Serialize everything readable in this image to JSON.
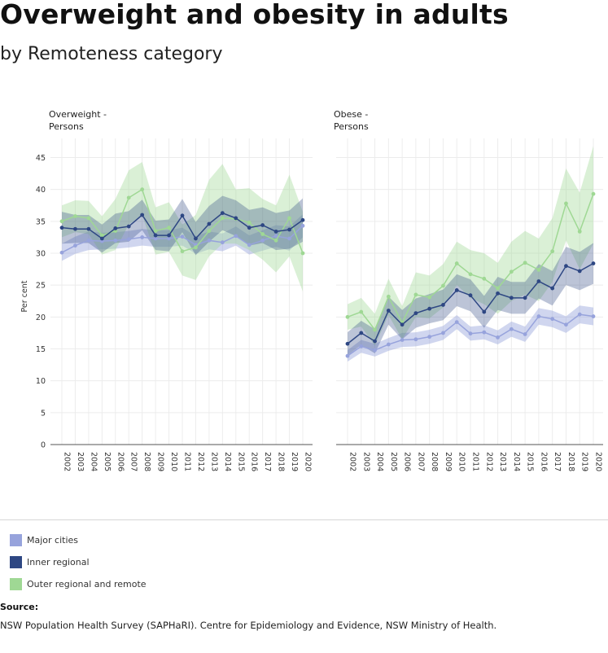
{
  "title": "Overweight and obesity in adults",
  "subtitle": "by Remoteness category",
  "colors": {
    "major_cities": "#97a3dc",
    "inner_regional": "#2e4783",
    "outer_regional_and_remote": "#9fd894",
    "grid": "#ececec",
    "axis": "#555555"
  },
  "legend": {
    "items": [
      {
        "label": "Major cities",
        "color": "#97a3dc"
      },
      {
        "label": "Inner regional",
        "color": "#2e4783"
      },
      {
        "label": "Outer regional and remote",
        "color": "#9fd894"
      }
    ]
  },
  "source": {
    "heading": "Source:",
    "text": "NSW Population Health Survey (SAPHaRI). Centre for Epidemiology and Evidence, NSW Ministry of Health."
  },
  "chart_data": [
    {
      "type": "line",
      "title_lines": [
        "Overweight -",
        "Persons"
      ],
      "ylabel": "Per cent",
      "ylim": [
        0,
        48
      ],
      "yticks": [
        0,
        5,
        10,
        15,
        20,
        25,
        30,
        35,
        40,
        45
      ],
      "categories": [
        "2002",
        "2003",
        "2004",
        "2005",
        "2006",
        "2007",
        "2008",
        "2009",
        "2010",
        "2011",
        "2012",
        "2013",
        "2014",
        "2015",
        "2016",
        "2017",
        "2018",
        "2019",
        "2020"
      ],
      "grid": true,
      "series": [
        {
          "name": "Major cities",
          "values": [
            30.1,
            31.2,
            32.0,
            31.9,
            32.0,
            32.2,
            32.5,
            32.3,
            32.3,
            32.6,
            31.3,
            32.0,
            31.7,
            32.7,
            31.3,
            32.0,
            32.7,
            32.3,
            34.3
          ],
          "lower": [
            28.8,
            29.9,
            30.5,
            30.6,
            30.7,
            30.9,
            31.2,
            31.0,
            31.0,
            31.2,
            29.9,
            30.6,
            30.3,
            31.2,
            29.8,
            30.4,
            31.0,
            30.4,
            32.5
          ],
          "upper": [
            31.5,
            32.6,
            33.4,
            33.2,
            33.3,
            33.5,
            33.8,
            33.6,
            33.6,
            34.0,
            32.7,
            33.4,
            33.1,
            34.2,
            32.8,
            33.6,
            34.4,
            34.2,
            36.1
          ]
        },
        {
          "name": "Inner regional",
          "values": [
            34.0,
            33.8,
            33.8,
            32.3,
            33.9,
            34.2,
            36.0,
            32.8,
            32.8,
            35.9,
            32.3,
            34.6,
            36.3,
            35.5,
            34.0,
            34.4,
            33.4,
            33.7,
            35.2
          ],
          "lower": [
            31.5,
            31.6,
            31.6,
            30.1,
            31.6,
            31.8,
            33.6,
            30.5,
            30.3,
            33.3,
            29.7,
            31.8,
            33.6,
            32.7,
            31.2,
            31.6,
            30.5,
            30.7,
            31.8
          ],
          "upper": [
            36.5,
            36.0,
            36.0,
            34.5,
            36.2,
            36.6,
            38.4,
            35.1,
            35.3,
            38.5,
            34.9,
            37.4,
            39.0,
            38.3,
            36.8,
            37.2,
            36.3,
            36.7,
            38.6
          ]
        },
        {
          "name": "Outer regional and remote",
          "values": [
            35.0,
            35.8,
            35.5,
            32.8,
            33.5,
            38.7,
            40.0,
            33.5,
            34.0,
            30.3,
            30.9,
            33.5,
            35.5,
            35.4,
            34.8,
            33.0,
            32.0,
            35.5,
            30.0
          ],
          "lower": [
            32.5,
            33.3,
            33.0,
            29.8,
            30.5,
            34.5,
            36.0,
            29.8,
            30.2,
            26.5,
            25.8,
            29.5,
            31.5,
            31.5,
            30.5,
            29.0,
            27.0,
            29.5,
            24.0
          ],
          "upper": [
            37.5,
            38.3,
            38.2,
            35.8,
            38.5,
            43.0,
            44.3,
            37.2,
            38.0,
            34.5,
            36.0,
            41.5,
            44.0,
            40.0,
            40.2,
            38.5,
            37.5,
            42.3,
            36.5
          ]
        }
      ]
    },
    {
      "type": "line",
      "title_lines": [
        "Obese -",
        "Persons"
      ],
      "ylabel": "",
      "ylim": [
        0,
        48
      ],
      "yticks": [
        0,
        5,
        10,
        15,
        20,
        25,
        30,
        35,
        40,
        45
      ],
      "categories": [
        "2002",
        "2003",
        "2004",
        "2005",
        "2006",
        "2007",
        "2008",
        "2009",
        "2010",
        "2011",
        "2012",
        "2013",
        "2014",
        "2015",
        "2016",
        "2017",
        "2018",
        "2019",
        "2020"
      ],
      "grid": true,
      "series": [
        {
          "name": "Major cities",
          "values": [
            13.9,
            15.4,
            14.8,
            15.7,
            16.4,
            16.5,
            16.9,
            17.5,
            19.2,
            17.4,
            17.6,
            16.8,
            18.1,
            17.3,
            20.1,
            19.7,
            18.8,
            20.4,
            20.1
          ],
          "lower": [
            13.0,
            14.4,
            13.8,
            14.7,
            15.3,
            15.4,
            15.8,
            16.4,
            18.1,
            16.3,
            16.5,
            15.7,
            16.9,
            16.1,
            18.8,
            18.4,
            17.5,
            19.0,
            18.7
          ],
          "upper": [
            14.8,
            16.4,
            15.8,
            16.7,
            17.5,
            17.6,
            18.0,
            18.6,
            20.3,
            18.5,
            18.7,
            17.9,
            19.3,
            18.5,
            21.4,
            21.0,
            20.1,
            21.8,
            21.5
          ]
        },
        {
          "name": "Inner regional",
          "values": [
            15.8,
            17.5,
            16.2,
            21.0,
            18.8,
            20.6,
            21.3,
            21.9,
            24.2,
            23.4,
            20.8,
            23.7,
            23.0,
            23.0,
            25.6,
            24.5,
            28.0,
            27.2,
            28.4
          ],
          "lower": [
            14.0,
            15.6,
            14.3,
            18.8,
            16.5,
            18.3,
            19.0,
            19.5,
            21.7,
            20.9,
            18.3,
            21.1,
            20.5,
            20.5,
            22.9,
            21.8,
            25.0,
            24.2,
            25.2
          ],
          "upper": [
            17.6,
            19.4,
            18.1,
            23.2,
            21.1,
            22.9,
            23.6,
            24.3,
            26.7,
            25.9,
            23.3,
            26.3,
            25.5,
            25.5,
            28.3,
            27.2,
            31.0,
            30.2,
            31.6
          ]
        },
        {
          "name": "Outer regional and remote",
          "values": [
            20.0,
            20.8,
            18.0,
            23.2,
            19.1,
            23.5,
            23.1,
            24.9,
            28.4,
            26.7,
            26.0,
            24.5,
            27.1,
            28.5,
            27.4,
            30.3,
            37.8,
            33.4,
            39.3
          ],
          "lower": [
            18.0,
            18.5,
            15.5,
            20.3,
            16.5,
            20.0,
            19.8,
            21.5,
            25.0,
            23.0,
            22.0,
            20.5,
            22.5,
            23.5,
            22.5,
            25.5,
            32.0,
            27.5,
            31.5
          ],
          "upper": [
            22.0,
            23.0,
            20.5,
            26.0,
            21.7,
            27.0,
            26.5,
            28.3,
            31.8,
            30.5,
            30.0,
            28.5,
            31.8,
            33.5,
            32.3,
            35.5,
            43.3,
            39.5,
            46.8
          ]
        }
      ]
    }
  ]
}
